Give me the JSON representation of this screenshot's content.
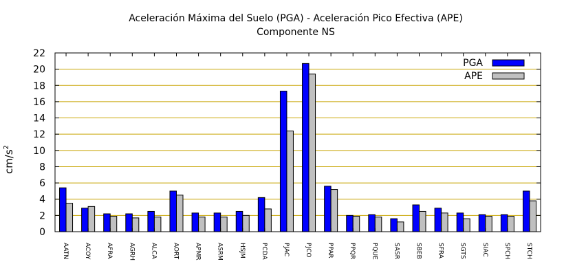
{
  "chart_data": {
    "type": "bar",
    "title": "Aceleración Máxima del Suelo (PGA) -  Aceleración Pico Efectiva (APE)",
    "subtitle": "Componente NS",
    "ylabel": "cm/s",
    "ylabel_sup": "2",
    "xlabel": "",
    "ylim": [
      0,
      22
    ],
    "yticks": [
      0,
      2,
      4,
      6,
      8,
      10,
      12,
      14,
      16,
      18,
      20,
      22
    ],
    "grid": "horizontal",
    "legend_position": "top-right",
    "categories": [
      "AATN",
      "ACOY",
      "AFRA",
      "AGRH",
      "ALCA",
      "AORT",
      "APMR",
      "ASRM",
      "HSJM",
      "PCDA",
      "PJAC",
      "PJCO",
      "PPAR",
      "PPQR",
      "PQUE",
      "SASR",
      "SBEB",
      "SFRA",
      "SGTS",
      "SIAC",
      "SPCH",
      "STCH"
    ],
    "series": [
      {
        "name": "PGA",
        "color": "#0000ff",
        "values": [
          5.4,
          2.9,
          2.2,
          2.2,
          2.5,
          5.0,
          2.3,
          2.3,
          2.5,
          4.2,
          17.3,
          20.7,
          5.6,
          2.0,
          2.1,
          1.6,
          3.3,
          2.9,
          2.3,
          2.1,
          2.1,
          5.0
        ]
      },
      {
        "name": "APE",
        "color": "#c0c0c0",
        "values": [
          3.5,
          3.1,
          1.9,
          1.7,
          1.8,
          4.5,
          1.8,
          1.8,
          2.0,
          2.8,
          12.4,
          19.4,
          5.2,
          1.9,
          1.8,
          1.2,
          2.5,
          2.3,
          1.6,
          1.9,
          1.9,
          3.8
        ]
      }
    ]
  }
}
